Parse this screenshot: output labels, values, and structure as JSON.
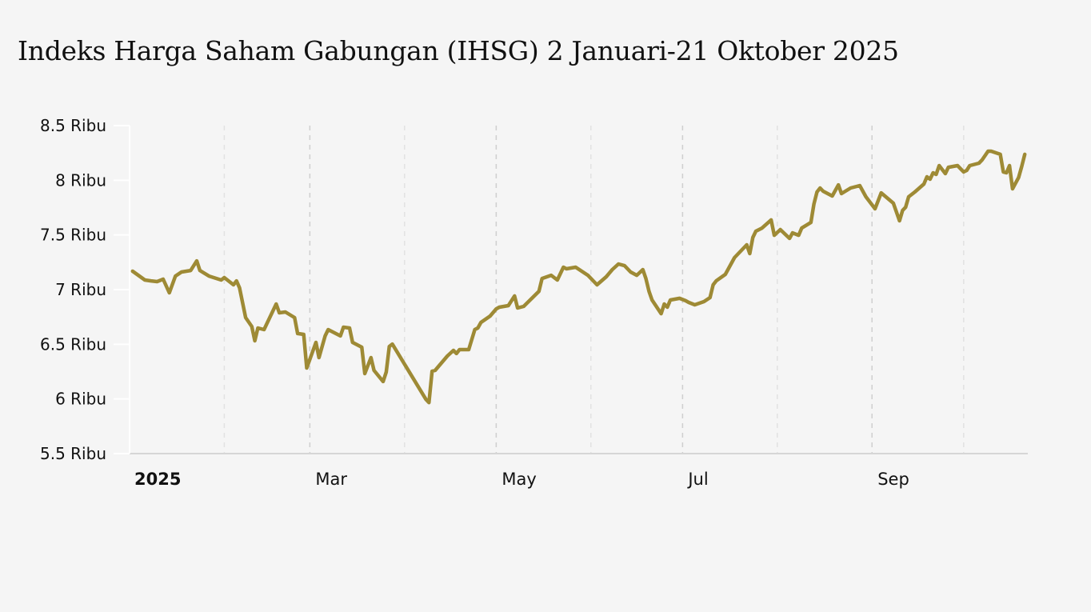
{
  "title": "Indeks Harga Saham Gabungan (IHSG) 2 Januari-21 Oktober 2025",
  "colors": {
    "line": "#9e8a35",
    "background": "#f5f5f5",
    "axis": "#d6d6d6",
    "grid": "#cfcfcf"
  },
  "chart_data": {
    "type": "line",
    "title": "Indeks Harga Saham Gabungan (IHSG) 2 Januari-21 Oktober 2025",
    "xlabel": "",
    "ylabel": "",
    "xlim": [
      "2025-01-01",
      "2025-10-22"
    ],
    "ylim": [
      5500,
      8500
    ],
    "grid": "vertical dashed at months",
    "y_ticks": [
      {
        "value": 5500,
        "label": "5.5 Ribu"
      },
      {
        "value": 6000,
        "label": "6 Ribu"
      },
      {
        "value": 6500,
        "label": "6.5 Ribu"
      },
      {
        "value": 7000,
        "label": "7 Ribu"
      },
      {
        "value": 7500,
        "label": "7.5 Ribu"
      },
      {
        "value": 8000,
        "label": "8 Ribu"
      },
      {
        "value": 8500,
        "label": "8.5 Ribu"
      }
    ],
    "x_ticks": [
      {
        "date": "2025-01-01",
        "label": "2025",
        "bold": true
      },
      {
        "date": "2025-03-01",
        "label": "Mar"
      },
      {
        "date": "2025-05-01",
        "label": "May"
      },
      {
        "date": "2025-07-01",
        "label": "Jul"
      },
      {
        "date": "2025-09-01",
        "label": "Sep"
      }
    ],
    "minor_x_grid": [
      "2025-02-01",
      "2025-04-01",
      "2025-06-01",
      "2025-08-01",
      "2025-10-01"
    ],
    "series": [
      {
        "points": [
          [
            "2025-01-02",
            7168
          ],
          [
            "2025-01-06",
            7088
          ],
          [
            "2025-01-08",
            7080
          ],
          [
            "2025-01-10",
            7073
          ],
          [
            "2025-01-12",
            7095
          ],
          [
            "2025-01-14",
            6971
          ],
          [
            "2025-01-16",
            7124
          ],
          [
            "2025-01-18",
            7161
          ],
          [
            "2025-01-21",
            7175
          ],
          [
            "2025-01-23",
            7263
          ],
          [
            "2025-01-24",
            7175
          ],
          [
            "2025-01-27",
            7124
          ],
          [
            "2025-01-31",
            7088
          ],
          [
            "2025-02-01",
            7110
          ],
          [
            "2025-02-04",
            7044
          ],
          [
            "2025-02-05",
            7080
          ],
          [
            "2025-02-06",
            7015
          ],
          [
            "2025-02-08",
            6744
          ],
          [
            "2025-02-10",
            6663
          ],
          [
            "2025-02-11",
            6532
          ],
          [
            "2025-02-12",
            6649
          ],
          [
            "2025-02-14",
            6634
          ],
          [
            "2025-02-18",
            6868
          ],
          [
            "2025-02-19",
            6788
          ],
          [
            "2025-02-21",
            6795
          ],
          [
            "2025-02-24",
            6744
          ],
          [
            "2025-02-25",
            6598
          ],
          [
            "2025-02-27",
            6590
          ],
          [
            "2025-02-28",
            6283
          ],
          [
            "2025-03-03",
            6517
          ],
          [
            "2025-03-04",
            6378
          ],
          [
            "2025-03-06",
            6576
          ],
          [
            "2025-03-07",
            6634
          ],
          [
            "2025-03-11",
            6576
          ],
          [
            "2025-03-12",
            6656
          ],
          [
            "2025-03-14",
            6649
          ],
          [
            "2025-03-15",
            6517
          ],
          [
            "2025-03-18",
            6473
          ],
          [
            "2025-03-19",
            6232
          ],
          [
            "2025-03-21",
            6378
          ],
          [
            "2025-03-22",
            6261
          ],
          [
            "2025-03-25",
            6159
          ],
          [
            "2025-03-26",
            6246
          ],
          [
            "2025-03-27",
            6480
          ],
          [
            "2025-03-28",
            6502
          ],
          [
            "2025-04-08",
            5996
          ],
          [
            "2025-04-09",
            5967
          ],
          [
            "2025-04-10",
            6254
          ],
          [
            "2025-04-11",
            6261
          ],
          [
            "2025-04-15",
            6393
          ],
          [
            "2025-04-17",
            6444
          ],
          [
            "2025-04-18",
            6415
          ],
          [
            "2025-04-19",
            6451
          ],
          [
            "2025-04-22",
            6451
          ],
          [
            "2025-04-24",
            6634
          ],
          [
            "2025-04-25",
            6649
          ],
          [
            "2025-04-26",
            6700
          ],
          [
            "2025-04-29",
            6758
          ],
          [
            "2025-05-01",
            6824
          ],
          [
            "2025-05-02",
            6839
          ],
          [
            "2025-05-05",
            6854
          ],
          [
            "2025-05-07",
            6942
          ],
          [
            "2025-05-08",
            6832
          ],
          [
            "2025-05-10",
            6846
          ],
          [
            "2025-05-15",
            6985
          ],
          [
            "2025-05-16",
            7102
          ],
          [
            "2025-05-19",
            7131
          ],
          [
            "2025-05-21",
            7088
          ],
          [
            "2025-05-23",
            7205
          ],
          [
            "2025-05-24",
            7190
          ],
          [
            "2025-05-27",
            7205
          ],
          [
            "2025-05-31",
            7131
          ],
          [
            "2025-06-03",
            7044
          ],
          [
            "2025-06-06",
            7117
          ],
          [
            "2025-06-08",
            7183
          ],
          [
            "2025-06-10",
            7234
          ],
          [
            "2025-06-12",
            7219
          ],
          [
            "2025-06-14",
            7161
          ],
          [
            "2025-06-16",
            7131
          ],
          [
            "2025-06-18",
            7183
          ],
          [
            "2025-06-19",
            7102
          ],
          [
            "2025-06-20",
            6985
          ],
          [
            "2025-06-21",
            6905
          ],
          [
            "2025-06-24",
            6780
          ],
          [
            "2025-06-25",
            6868
          ],
          [
            "2025-06-26",
            6839
          ],
          [
            "2025-06-27",
            6905
          ],
          [
            "2025-06-30",
            6920
          ],
          [
            "2025-07-02",
            6898
          ],
          [
            "2025-07-03",
            6883
          ],
          [
            "2025-07-05",
            6861
          ],
          [
            "2025-07-08",
            6890
          ],
          [
            "2025-07-10",
            6927
          ],
          [
            "2025-07-11",
            7044
          ],
          [
            "2025-07-12",
            7080
          ],
          [
            "2025-07-15",
            7139
          ],
          [
            "2025-07-18",
            7293
          ],
          [
            "2025-07-22",
            7410
          ],
          [
            "2025-07-23",
            7329
          ],
          [
            "2025-07-24",
            7476
          ],
          [
            "2025-07-25",
            7534
          ],
          [
            "2025-07-27",
            7563
          ],
          [
            "2025-07-30",
            7637
          ],
          [
            "2025-07-31",
            7497
          ],
          [
            "2025-08-02",
            7549
          ],
          [
            "2025-08-05",
            7468
          ],
          [
            "2025-08-06",
            7519
          ],
          [
            "2025-08-08",
            7497
          ],
          [
            "2025-08-09",
            7563
          ],
          [
            "2025-08-12",
            7614
          ],
          [
            "2025-08-13",
            7783
          ],
          [
            "2025-08-14",
            7893
          ],
          [
            "2025-08-15",
            7929
          ],
          [
            "2025-08-16",
            7900
          ],
          [
            "2025-08-19",
            7856
          ],
          [
            "2025-08-21",
            7958
          ],
          [
            "2025-08-22",
            7878
          ],
          [
            "2025-08-25",
            7929
          ],
          [
            "2025-08-27",
            7944
          ],
          [
            "2025-08-28",
            7951
          ],
          [
            "2025-08-30",
            7849
          ],
          [
            "2025-09-02",
            7739
          ],
          [
            "2025-09-04",
            7885
          ],
          [
            "2025-09-08",
            7790
          ],
          [
            "2025-09-10",
            7629
          ],
          [
            "2025-09-11",
            7724
          ],
          [
            "2025-09-12",
            7753
          ],
          [
            "2025-09-13",
            7849
          ],
          [
            "2025-09-15",
            7893
          ],
          [
            "2025-09-18",
            7966
          ],
          [
            "2025-09-19",
            8032
          ],
          [
            "2025-09-20",
            8010
          ],
          [
            "2025-09-21",
            8068
          ],
          [
            "2025-09-22",
            8054
          ],
          [
            "2025-09-23",
            8134
          ],
          [
            "2025-09-25",
            8061
          ],
          [
            "2025-09-26",
            8119
          ],
          [
            "2025-09-29",
            8134
          ],
          [
            "2025-10-01",
            8076
          ],
          [
            "2025-10-02",
            8090
          ],
          [
            "2025-10-03",
            8134
          ],
          [
            "2025-10-06",
            8156
          ],
          [
            "2025-10-07",
            8185
          ],
          [
            "2025-10-09",
            8266
          ],
          [
            "2025-10-10",
            8266
          ],
          [
            "2025-10-13",
            8237
          ],
          [
            "2025-10-14",
            8076
          ],
          [
            "2025-10-15",
            8068
          ],
          [
            "2025-10-16",
            8134
          ],
          [
            "2025-10-17",
            7922
          ],
          [
            "2025-10-19",
            8025
          ],
          [
            "2025-10-20",
            8127
          ],
          [
            "2025-10-21",
            8237
          ]
        ]
      }
    ]
  }
}
